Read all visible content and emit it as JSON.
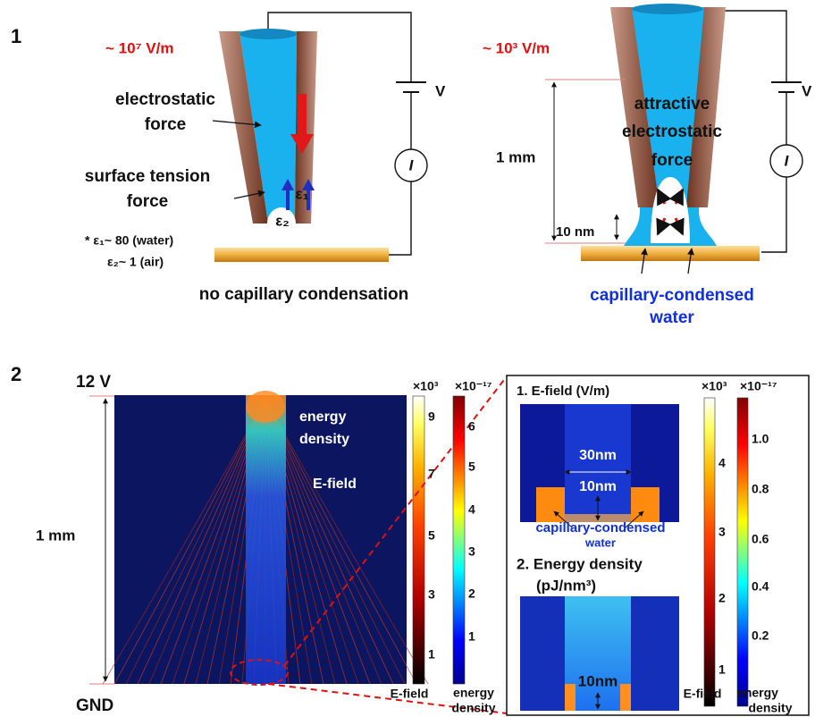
{
  "panel1": {
    "label": "1",
    "left": {
      "field": "~ 10⁷ V/m",
      "electrostatic_force": [
        "electrostatic",
        "force"
      ],
      "surface_tension_force": [
        "surface tension",
        "force"
      ],
      "epsilon1": "ε₁",
      "epsilon2": "ε₂",
      "note": [
        "* ε₁~ 80 (water)",
        "ε₂~ 1 (air)"
      ],
      "voltage": "V",
      "current": "I",
      "caption": "no capillary condensation"
    },
    "right": {
      "field": "~ 10³ V/m",
      "force_label": [
        "attractive",
        "electrostatic",
        "force"
      ],
      "height": "1 mm",
      "gap": "10 nm",
      "voltage": "V",
      "current": "I",
      "caption": [
        "capillary-condensed",
        "water"
      ]
    }
  },
  "panel2": {
    "label": "2",
    "top_voltage": "12 V",
    "ground": "GND",
    "height": "1 mm",
    "energy_density": [
      "energy",
      "density"
    ],
    "e_field": "E-field",
    "colorbar_efield": {
      "multiplier": "×10³",
      "ticks": [
        "9",
        "7",
        "5",
        "3",
        "1"
      ],
      "label": "E-field"
    },
    "colorbar_energy": {
      "multiplier": "×10⁻¹⁷",
      "ticks": [
        "6",
        "5",
        "4",
        "3",
        "2",
        "1"
      ],
      "label": [
        "energy",
        "density"
      ]
    },
    "inset": {
      "efield_title": "1. E-field (V/m)",
      "width": "30nm",
      "gap_top": "10nm",
      "water": [
        "capillary-condensed",
        "water"
      ],
      "energy_title": [
        "2. Energy density",
        "(pJ/nm³)"
      ],
      "gap_bottom": "10nm",
      "colorbar_efield": {
        "multiplier": "×10³",
        "ticks": [
          "4",
          "3",
          "2",
          "1"
        ],
        "label": "E-field"
      },
      "colorbar_energy": {
        "multiplier": "×10⁻¹⁷",
        "ticks": [
          "1.0",
          "0.8",
          "0.6",
          "0.4",
          "0.2"
        ],
        "label": [
          "energy",
          "density"
        ]
      }
    }
  }
}
